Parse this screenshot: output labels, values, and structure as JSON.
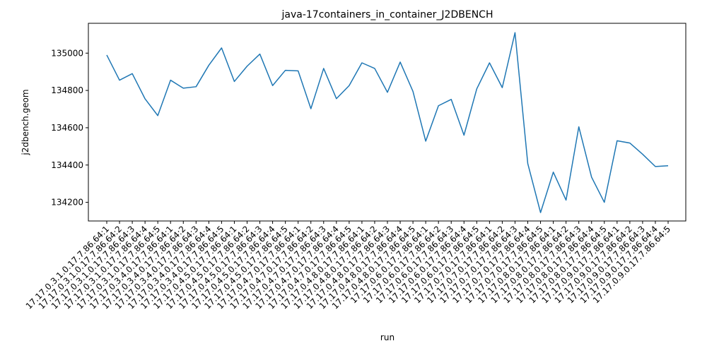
{
  "chart_data": {
    "type": "line",
    "title": "java-17containers_in_container_J2DBENCH",
    "xlabel": "run",
    "ylabel": "j2dbench.geom",
    "ylim": [
      134100,
      135160
    ],
    "yticks": [
      134200,
      134400,
      134600,
      134800,
      135000
    ],
    "grid": false,
    "legend": "none",
    "line_color": "#1f77b4",
    "categories": [
      "17.17.0.3.1.0.17.7.86.64:1",
      "17.17.0.3.1.0.17.7.86.64:2",
      "17.17.0.3.1.0.17.7.86.64:3",
      "17.17.0.3.1.0.17.7.86.64:4",
      "17.17.0.3.1.0.17.7.86.64:5",
      "17.17.0.3.4.0.17.7.86.64:1",
      "17.17.0.3.4.0.17.7.86.64:2",
      "17.17.0.3.4.0.17.7.86.64:3",
      "17.17.0.3.4.0.17.7.86.64:4",
      "17.17.0.3.4.0.17.7.86.64:5",
      "17.17.0.4.5.0.17.7.86.64:1",
      "17.17.0.4.5.0.17.7.86.64:2",
      "17.17.0.4.5.0.17.7.86.64:3",
      "17.17.0.4.5.0.17.7.86.64:4",
      "17.17.0.4.5.0.17.7.86.64:5",
      "17.17.0.4.7.0.17.7.86.64:1",
      "17.17.0.4.7.0.17.7.86.64:2",
      "17.17.0.4.7.0.17.7.86.64:3",
      "17.17.0.4.7.0.17.7.86.64:4",
      "17.17.0.4.7.0.17.7.86.64:5",
      "17.17.0.4.8.0.17.7.86.64:1",
      "17.17.0.4.8.0.17.7.86.64:2",
      "17.17.0.4.8.0.17.7.86.64:3",
      "17.17.0.4.8.0.17.7.86.64:4",
      "17.17.0.4.8.0.17.7.86.64:5",
      "17.17.0.6.0.17.7.86.64:1",
      "17.17.0.6.0.17.7.86.64:2",
      "17.17.0.6.0.17.7.86.64:3",
      "17.17.0.6.0.17.7.86.64:4",
      "17.17.0.6.0.17.7.86.64:5",
      "17.17.0.7.0.17.7.86.64:1",
      "17.17.0.7.0.17.7.86.64:2",
      "17.17.0.7.0.17.7.86.64:3",
      "17.17.0.7.0.17.7.86.64:4",
      "17.17.0.7.0.17.7.86.64:5",
      "17.17.0.8.0.17.7.86.64:1",
      "17.17.0.8.0.17.7.86.64:2",
      "17.17.0.8.0.17.7.86.64:3",
      "17.17.0.8.0.17.7.86.64:4",
      "17.17.0.8.0.17.7.86.64:5",
      "17.17.0.9.0.17.7.86.64:1",
      "17.17.0.9.0.17.7.86.64:2",
      "17.17.0.9.0.17.7.86.64:3",
      "17.17.0.9.0.17.7.86.64:4",
      "17.17.0.9.0.17.7.86.64:5"
    ],
    "values": [
      134990,
      134855,
      134890,
      134755,
      134665,
      134855,
      134812,
      134820,
      134935,
      135028,
      134848,
      134930,
      134995,
      134826,
      134908,
      134905,
      134702,
      134918,
      134756,
      134826,
      134948,
      134918,
      134790,
      134952,
      134795,
      134528,
      134718,
      134752,
      134560,
      134808,
      134948,
      134815,
      135110,
      134408,
      134145,
      134362,
      134212,
      134605,
      134335,
      134200,
      134530,
      134518,
      134458,
      134392,
      134396
    ]
  }
}
